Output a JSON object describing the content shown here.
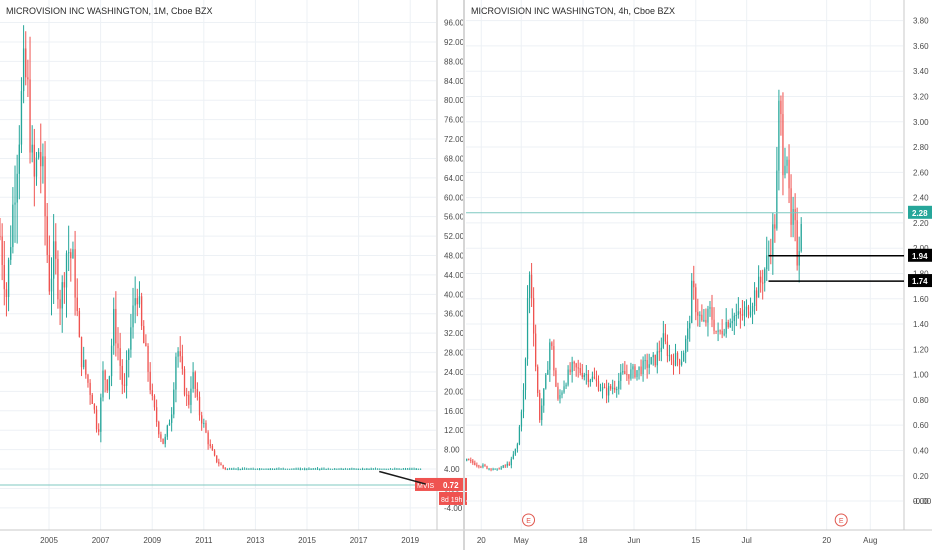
{
  "colors": {
    "up": "#26a69a",
    "down": "#ef5350",
    "grid": "#edf1f5",
    "axis_text": "#4a4a4a",
    "price_line": "#7fc8c1",
    "divider": "#d6d6d6",
    "marker_black": "#000000",
    "trend_line": "#1a1a1a",
    "earnings_marker": "#e0584f"
  },
  "chart_data": [
    {
      "type": "candlestick",
      "title": "MICROVISION INC WASHINGTON, 1M, Cboe BZX",
      "y_ticks": [
        "96.00",
        "92.00",
        "88.00",
        "84.00",
        "80.00",
        "76.00",
        "72.00",
        "68.00",
        "64.00",
        "60.00",
        "56.00",
        "52.00",
        "48.00",
        "44.00",
        "40.00",
        "36.00",
        "32.00",
        "28.00",
        "24.00",
        "20.00",
        "16.00",
        "12.00",
        "8.00",
        "4.00",
        "0.00",
        "-4.00"
      ],
      "y_tick_values": [
        96,
        92,
        88,
        84,
        80,
        76,
        72,
        68,
        64,
        60,
        56,
        52,
        48,
        44,
        40,
        36,
        32,
        28,
        24,
        20,
        16,
        12,
        8,
        4,
        0,
        -4
      ],
      "ylim": [
        -6.5,
        99
      ],
      "x_ticks": [
        "2005",
        "2007",
        "2009",
        "2011",
        "2013",
        "2015",
        "2017",
        "2019"
      ],
      "x_tick_years": [
        2005,
        2007,
        2009,
        2011,
        2013,
        2015,
        2017,
        2019
      ],
      "xlim_years": [
        2003.1,
        2020.0
      ],
      "grid": true,
      "keypoints": [
        [
          2003.1,
          52
        ],
        [
          2003.35,
          40
        ],
        [
          2003.6,
          58
        ],
        [
          2003.9,
          78
        ],
        [
          2004.05,
          86
        ],
        [
          2004.2,
          80
        ],
        [
          2004.4,
          62
        ],
        [
          2004.6,
          70
        ],
        [
          2004.75,
          65
        ],
        [
          2005.0,
          42
        ],
        [
          2005.2,
          48
        ],
        [
          2005.45,
          38
        ],
        [
          2005.7,
          50
        ],
        [
          2005.95,
          46
        ],
        [
          2006.2,
          28
        ],
        [
          2006.5,
          22
        ],
        [
          2006.7,
          18
        ],
        [
          2006.9,
          11
        ],
        [
          2007.1,
          24
        ],
        [
          2007.3,
          21
        ],
        [
          2007.5,
          35
        ],
        [
          2007.7,
          28
        ],
        [
          2007.9,
          19
        ],
        [
          2008.15,
          32
        ],
        [
          2008.4,
          42
        ],
        [
          2008.6,
          32
        ],
        [
          2008.8,
          26
        ],
        [
          2009.0,
          18
        ],
        [
          2009.25,
          12
        ],
        [
          2009.45,
          9
        ],
        [
          2009.75,
          16
        ],
        [
          2009.95,
          30
        ],
        [
          2010.2,
          22
        ],
        [
          2010.4,
          17
        ],
        [
          2010.55,
          24
        ],
        [
          2010.8,
          16
        ],
        [
          2011.0,
          13
        ],
        [
          2011.2,
          9
        ],
        [
          2011.45,
          6
        ],
        [
          2011.7,
          4.5
        ],
        [
          2012.0,
          3.2
        ],
        [
          2012.5,
          2.6
        ],
        [
          2013.0,
          2.6
        ],
        [
          2013.5,
          2.2
        ],
        [
          2014.0,
          2.7
        ],
        [
          2014.5,
          2.2
        ],
        [
          2015.0,
          2.9
        ],
        [
          2015.5,
          2.8
        ],
        [
          2016.0,
          2.2
        ],
        [
          2016.5,
          2.0
        ],
        [
          2017.0,
          1.7
        ],
        [
          2017.3,
          2.4
        ],
        [
          2017.6,
          2.0
        ],
        [
          2018.0,
          1.7
        ],
        [
          2018.5,
          1.3
        ],
        [
          2019.0,
          1.0
        ],
        [
          2019.4,
          0.72
        ]
      ],
      "last_price": 0.72,
      "last_price_label": "0.72",
      "symbol_label": "MVIS",
      "countdown_label": "8d 19h",
      "trend_line": {
        "from": [
          2017.8,
          3.5
        ],
        "to": [
          2019.6,
          0.9
        ]
      }
    },
    {
      "type": "candlestick",
      "title": "MICROVISION INC WASHINGTON, 4h, Cboe BZX",
      "y_ticks": [
        "3.80",
        "3.60",
        "3.40",
        "3.20",
        "3.00",
        "2.80",
        "2.60",
        "2.40",
        "2.20",
        "2.00",
        "1.80",
        "1.60",
        "1.40",
        "1.20",
        "1.00",
        "0.80",
        "0.60",
        "0.40",
        "0.20",
        "0.00",
        "-0.00"
      ],
      "y_tick_values": [
        3.8,
        3.6,
        3.4,
        3.2,
        3.0,
        2.8,
        2.6,
        2.4,
        2.2,
        2.0,
        1.8,
        1.6,
        1.4,
        1.2,
        1.0,
        0.8,
        0.6,
        0.4,
        0.2,
        0.0,
        -0.0
      ],
      "ylim": [
        -0.15,
        3.9
      ],
      "x_ticks": [
        "20",
        "May",
        "18",
        "Jun",
        "15",
        "Jul",
        "20",
        "Aug"
      ],
      "x_tick_days": [
        0,
        11,
        28,
        42,
        59,
        73,
        95,
        107
      ],
      "xlim_days": [
        -4.2,
        116
      ],
      "grid": true,
      "keypoints": [
        [
          -4,
          0.32
        ],
        [
          0,
          0.28
        ],
        [
          4,
          0.24
        ],
        [
          8,
          0.3
        ],
        [
          10,
          0.45
        ],
        [
          11,
          0.72
        ],
        [
          12,
          0.95
        ],
        [
          13,
          1.85
        ],
        [
          14,
          1.6
        ],
        [
          15,
          1.05
        ],
        [
          16,
          0.65
        ],
        [
          17,
          0.82
        ],
        [
          18,
          1.0
        ],
        [
          19,
          1.3
        ],
        [
          20,
          1.05
        ],
        [
          21,
          0.78
        ],
        [
          23,
          0.95
        ],
        [
          25,
          1.05
        ],
        [
          28,
          1.02
        ],
        [
          31,
          0.96
        ],
        [
          34,
          0.86
        ],
        [
          37,
          0.92
        ],
        [
          39,
          1.0
        ],
        [
          42,
          1.02
        ],
        [
          45,
          1.07
        ],
        [
          48,
          1.12
        ],
        [
          50,
          1.28
        ],
        [
          52,
          1.13
        ],
        [
          55,
          1.12
        ],
        [
          57,
          1.35
        ],
        [
          58,
          1.7
        ],
        [
          59,
          1.55
        ],
        [
          61,
          1.38
        ],
        [
          63,
          1.5
        ],
        [
          65,
          1.3
        ],
        [
          67,
          1.4
        ],
        [
          69,
          1.47
        ],
        [
          71,
          1.45
        ],
        [
          73,
          1.5
        ],
        [
          75,
          1.63
        ],
        [
          77,
          1.74
        ],
        [
          79,
          1.94
        ],
        [
          81,
          2.25
        ],
        [
          82,
          3.2
        ],
        [
          83,
          2.7
        ],
        [
          84,
          2.85
        ],
        [
          85,
          2.1
        ],
        [
          86,
          2.25
        ],
        [
          87,
          1.88
        ],
        [
          88,
          2.28
        ]
      ],
      "last_price": 2.28,
      "last_price_label": "2.28",
      "levels": [
        {
          "value": 1.94,
          "label": "1.94",
          "from_day": 79
        },
        {
          "value": 1.74,
          "label": "1.74",
          "from_day": 79
        }
      ],
      "earnings_markers": [
        {
          "day": 13,
          "label": "E"
        },
        {
          "day": 99,
          "label": "E"
        }
      ]
    }
  ]
}
